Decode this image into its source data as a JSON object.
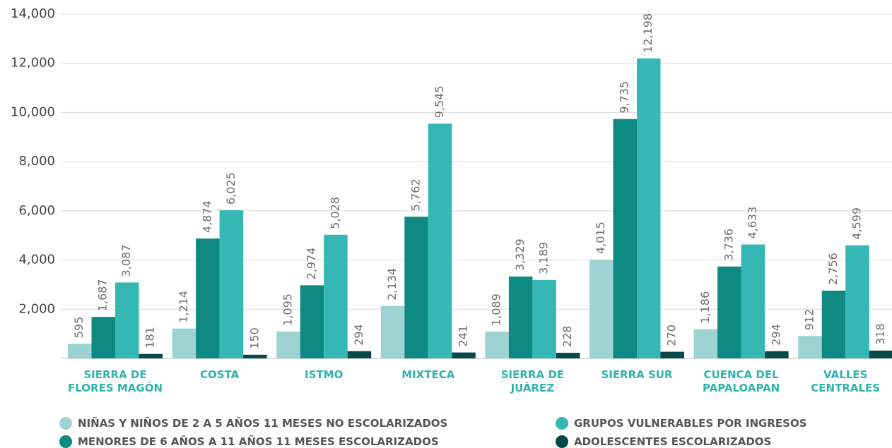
{
  "chart_data": {
    "type": "bar",
    "categories": [
      "SIERRA DE\nFLORES MAGÓN",
      "COSTA",
      "ISTMO",
      "MIXTECA",
      "SIERRA DE\nJUÁREZ",
      "SIERRA SUR",
      "CUENCA DEL\nPAPALOAPAN",
      "VALLES\nCENTRALES"
    ],
    "series": [
      {
        "name": "NIÑAS Y NIÑOS DE 2 A 5 AÑOS 11 MESES NO ESCOLARIZADOS",
        "color": "#9dd3d2",
        "values": [
          595,
          1214,
          1095,
          2134,
          1089,
          4015,
          1186,
          912
        ],
        "value_labels": [
          "595",
          "1,214",
          "1,095",
          "2,134",
          "1,089",
          "4,015",
          "1,186",
          "912"
        ]
      },
      {
        "name": "MENORES DE 6 AÑOS A 11 AÑOS 11 MESES ESCOLARIZADOS",
        "color": "#0f8a83",
        "values": [
          1687,
          4874,
          2974,
          5762,
          3329,
          9735,
          3736,
          2756
        ],
        "value_labels": [
          "1,687",
          "4,874",
          "2,974",
          "5,762",
          "3,329",
          "9,735",
          "3,736",
          "2,756"
        ]
      },
      {
        "name": "GRUPOS VULNERABLES POR INGRESOS",
        "color": "#35b8b3",
        "values": [
          3087,
          6025,
          5028,
          9545,
          3189,
          12198,
          4633,
          4599
        ],
        "value_labels": [
          "3,087",
          "6,025",
          "5,028",
          "9,545",
          "3,189",
          "12,198",
          "4,633",
          "4,599"
        ]
      },
      {
        "name": "ADOLESCENTES ESCOLARIZADOS",
        "color": "#07484a",
        "values": [
          181,
          150,
          294,
          241,
          228,
          270,
          294,
          318
        ],
        "value_labels": [
          "181",
          "150",
          "294",
          "241",
          "228",
          "270",
          "294",
          "318"
        ]
      }
    ],
    "ylim": [
      0,
      14000
    ],
    "yticks": [
      {
        "value": 2000,
        "label": "2,000"
      },
      {
        "value": 4000,
        "label": "4,000"
      },
      {
        "value": 6000,
        "label": "6,000"
      },
      {
        "value": 8000,
        "label": "8,000"
      },
      {
        "value": 10000,
        "label": "10,000"
      },
      {
        "value": 12000,
        "label": "12,000"
      },
      {
        "value": 14000,
        "label": "14,000"
      }
    ],
    "grid": true
  }
}
